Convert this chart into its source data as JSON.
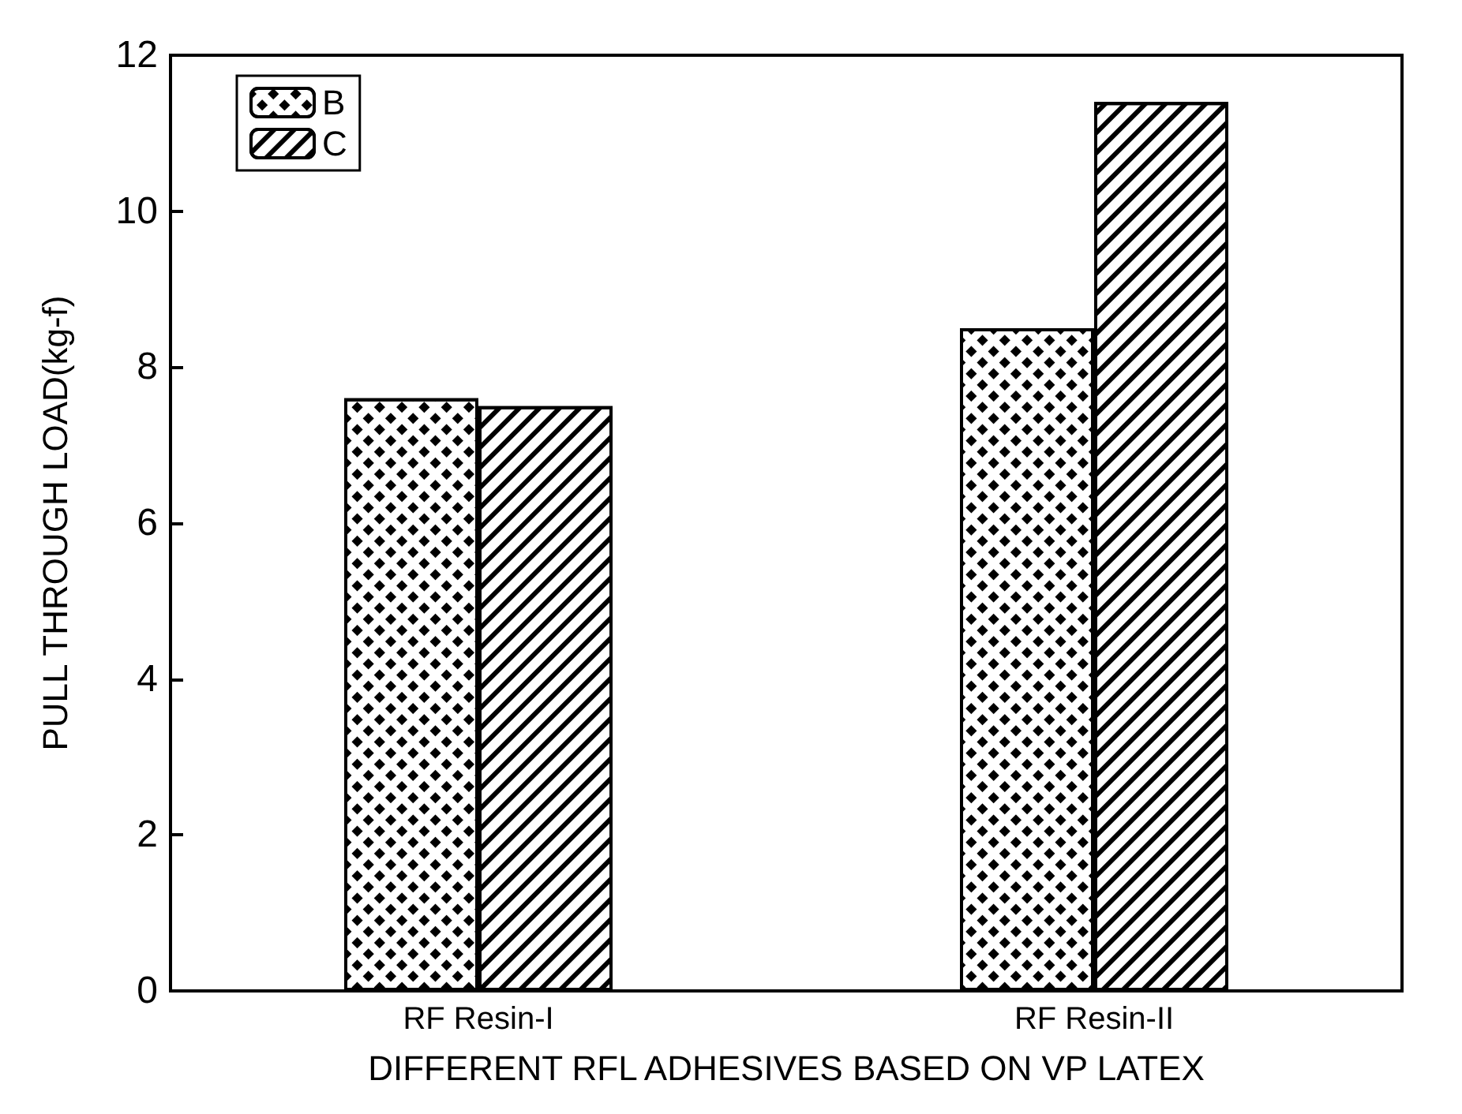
{
  "chart_data": {
    "type": "bar",
    "xlabel": "DIFFERENT RFL ADHESIVES BASED ON VP LATEX",
    "ylabel": "PULL THROUGH LOAD(kg-f)",
    "categories": [
      "RF Resin-I",
      "RF Resin-II"
    ],
    "series": [
      {
        "name": "B",
        "color": "#000000",
        "values": [
          7.6,
          8.5
        ]
      },
      {
        "name": "C",
        "color": "#000000",
        "values": [
          7.5,
          11.4
        ]
      }
    ],
    "ylim": [
      0,
      12
    ],
    "yticks": [
      0,
      2,
      4,
      6,
      8,
      10,
      12
    ],
    "grid": false,
    "legend": "top left"
  }
}
